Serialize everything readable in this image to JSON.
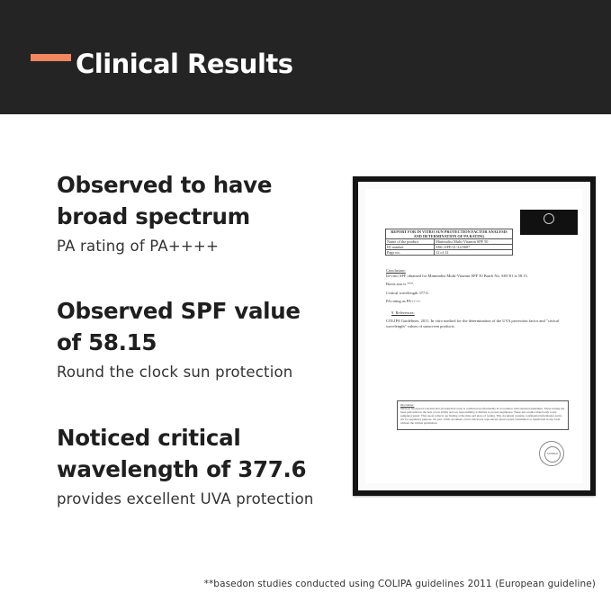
{
  "header": {
    "title": "Clinical Results",
    "accent_color": "#f2865f",
    "background": "#242424"
  },
  "claims": [
    {
      "heading_line1": "Observed to have",
      "heading_line2": "broad spectrum",
      "sub": "PA rating of PA++++"
    },
    {
      "heading_line1": "Observed SPF value",
      "heading_line2": "of 58.15",
      "sub": "Round the clock sun protection"
    },
    {
      "heading_line1": "Noticed critical",
      "heading_line2": "wavelength of 377.6",
      "sub": "provides excellent UVA protection"
    }
  ],
  "document": {
    "report_title": "REPORT FOR IN VITRO SUN PROTECTION FACTOR ANALYSIS AND DETERMINATION OF PA RATING",
    "rows": [
      {
        "label": "Name of the product",
        "value": "Minimalist Multi-Vitamin SPF 50"
      },
      {
        "label": "ID number",
        "value": "MSL/SPF/21-22/0687"
      },
      {
        "label": "Page no.",
        "value": "12 of 12"
      }
    ],
    "conclusion_heading": "Conclusion:",
    "conclusion_lines": [
      "In-vitro SPF obtained for Minimalist Multi-Vitamin SPF 50 Batch No. SS5-01 is 58.15.",
      "Boots star is ***.",
      "Critical wavelength 377.6.",
      "PA rating as PA++++."
    ],
    "references_heading": "9. References:",
    "references_text": "COLIPA Guidelines, 2011. In vitro method for the determination of the UVA protection factor and \"critical wavelength\" values of sunscreen products.",
    "disclaimer_heading": "Disclaimer:",
    "disclaimer_text": "Maxxon Sponsored warrants that all analytical work is conducted professionally in accordance with standard guidelines. These testing has been performed to the best of our ability and our responsibility is limited to proven negligence. These test results related only to the sample(s) tested. This report reflects our finding at the time and place of testing. This document contains confidential information and is not for regulatory purpose. No part of this document can be disclosed, reproduced, photocopied, transmitted or transferred in any form without the written permission.",
    "stamp_text": "MUMBAI"
  },
  "footnote": "**basedon studies conducted using COLIPA guidelines 2011 (European guideline)"
}
